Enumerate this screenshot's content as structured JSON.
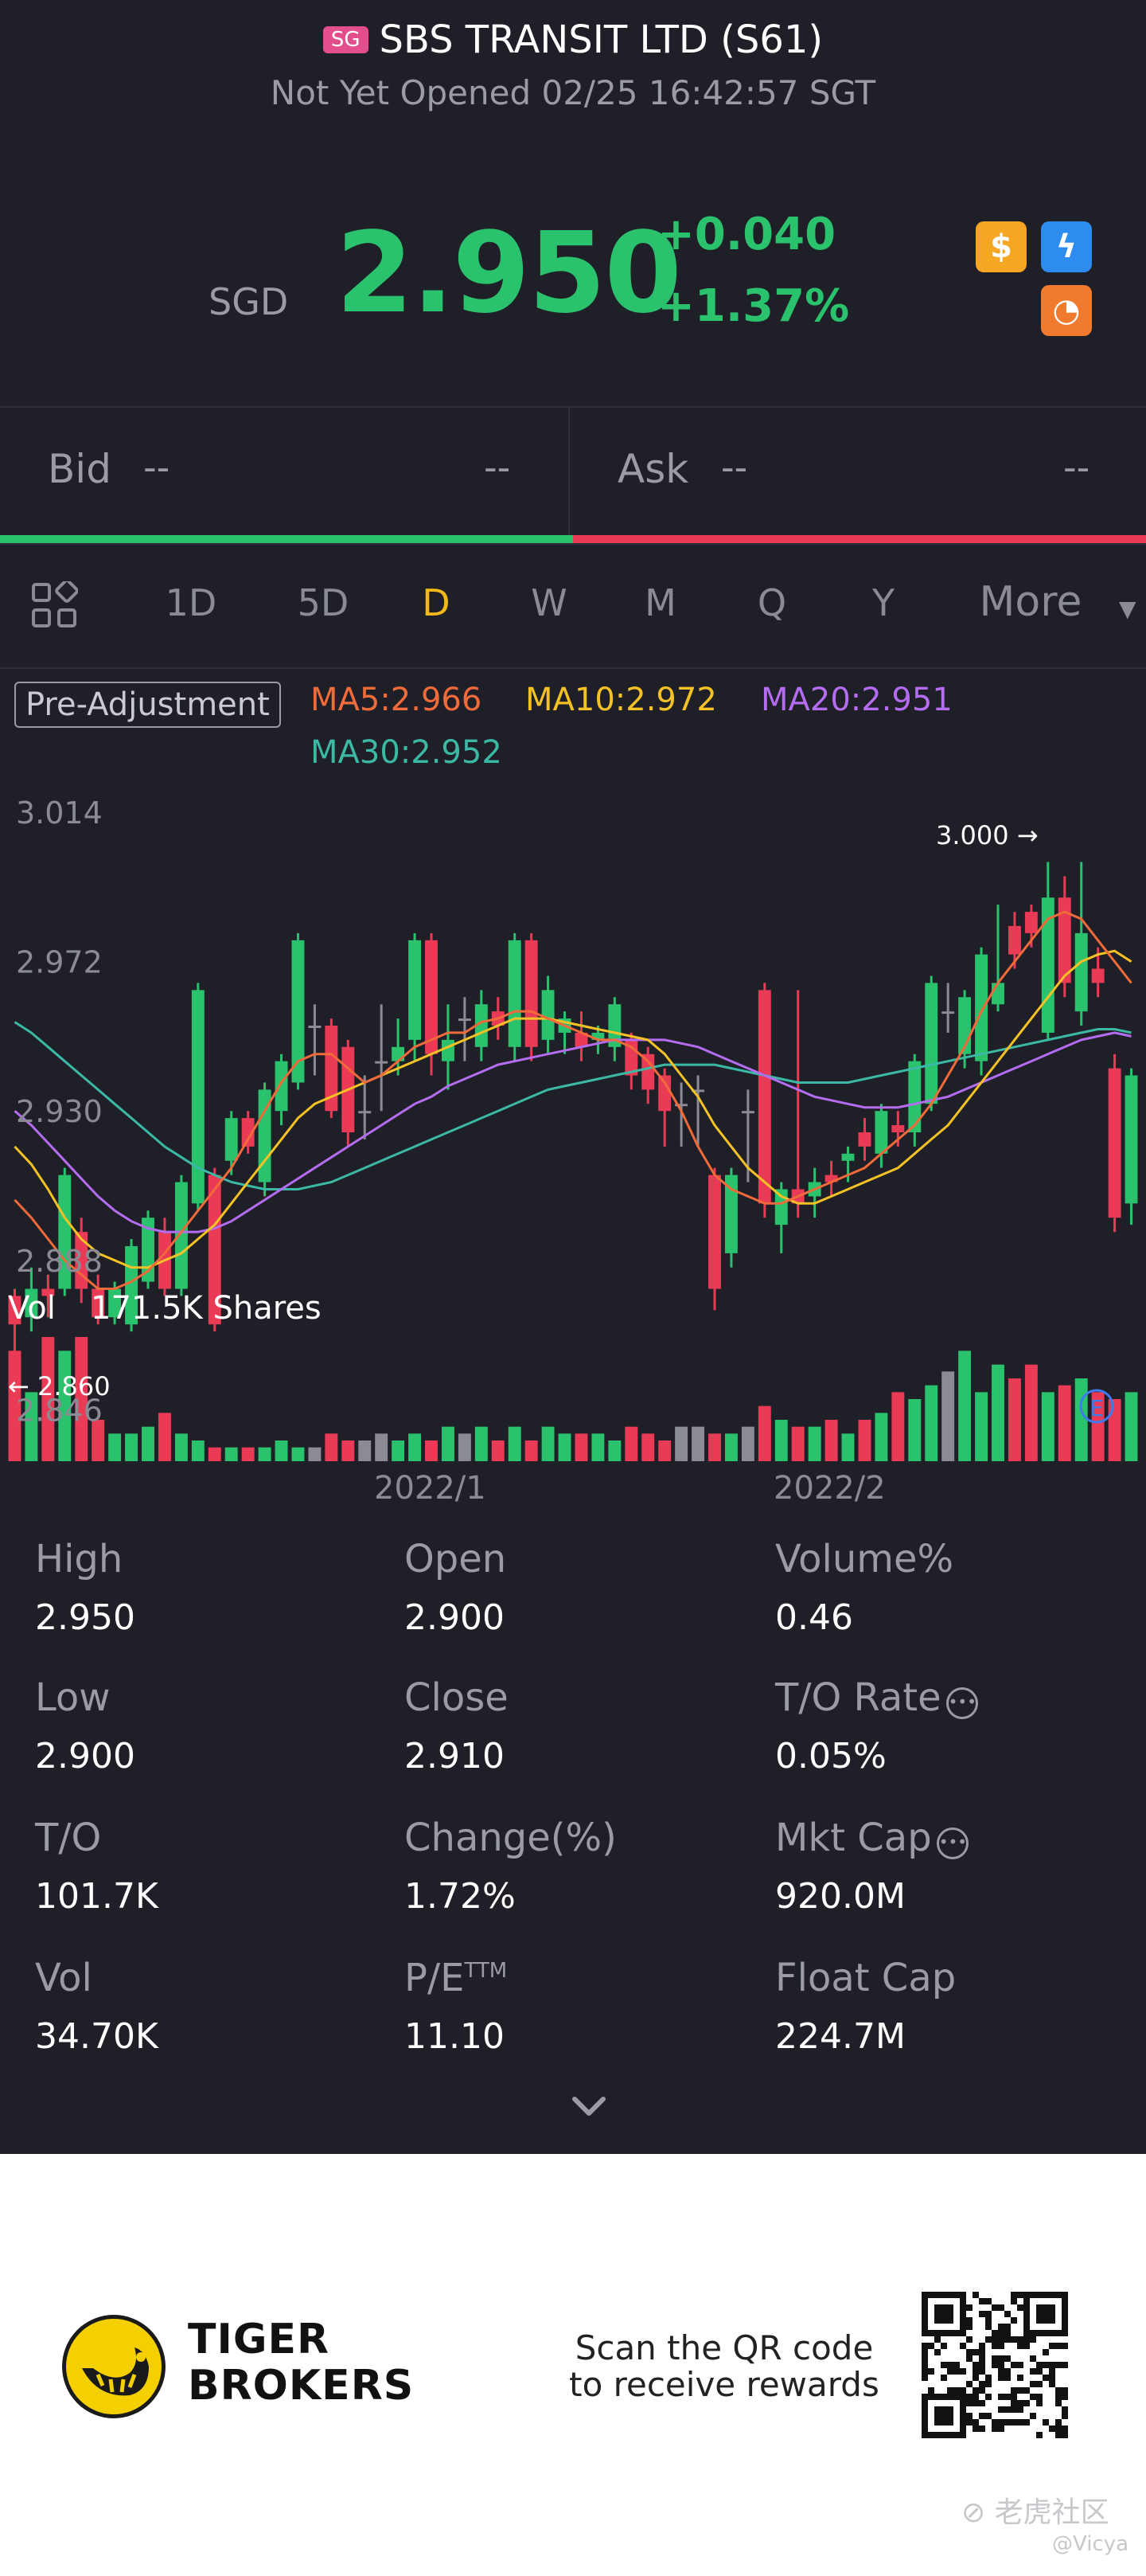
{
  "header": {
    "market_badge": "SG",
    "title": "SBS TRANSIT LTD (S61)",
    "status": "Not Yet Opened 02/25 16:42:57 SGT"
  },
  "quote": {
    "currency": "SGD",
    "price": "2.950",
    "change": "+0.040",
    "change_pct": "+1.37%"
  },
  "badges": [
    {
      "icon": "dollar-icon",
      "glyph": "$",
      "color": "#f5a623"
    },
    {
      "icon": "lightning-icon",
      "glyph": "ϟ",
      "color": "#2d8cf0"
    },
    {
      "icon": "chart-badge-icon",
      "glyph": "◔",
      "color": "#f07a2d"
    }
  ],
  "bid_ask": {
    "bid_label": "Bid",
    "bid_price": "--",
    "bid_size": "--",
    "ask_label": "Ask",
    "ask_price": "--",
    "ask_size": "--"
  },
  "tabs": {
    "grid_icon": "grid-icon",
    "items": [
      "1D",
      "5D",
      "D",
      "W",
      "M",
      "Q",
      "Y"
    ],
    "active": "D",
    "more": "More"
  },
  "indicators": {
    "adjust": "Pre-Adjustment",
    "ma5": "MA5:2.966",
    "ma10": "MA10:2.972",
    "ma20": "MA20:2.951",
    "ma30": "MA30:2.952",
    "colors": {
      "ma5": "#f06a3a",
      "ma10": "#f5c226",
      "ma20": "#b46cf0",
      "ma30": "#3bb9a5"
    }
  },
  "chart_data": {
    "type": "candlestick",
    "price_axis_labels": [
      "3.014",
      "2.972",
      "2.930",
      "2.888",
      "2.846"
    ],
    "ylim": [
      2.846,
      3.014
    ],
    "high_marker": "3.000",
    "low_marker": "2.860",
    "event_marker": "E",
    "volume_label": "Vol",
    "volume_value": "171.5K Shares",
    "x_labels": [
      "2022/1",
      "2022/2"
    ],
    "up_color": "#2bc26d",
    "down_color": "#e93a56",
    "candles": [
      {
        "o": 2.878,
        "c": 2.87,
        "h": 2.88,
        "l": 2.86
      },
      {
        "o": 2.872,
        "c": 2.88,
        "h": 2.886,
        "l": 2.868
      },
      {
        "o": 2.88,
        "c": 2.878,
        "h": 2.884,
        "l": 2.872
      },
      {
        "o": 2.88,
        "c": 2.912,
        "h": 2.914,
        "l": 2.878
      },
      {
        "o": 2.896,
        "c": 2.88,
        "h": 2.9,
        "l": 2.876
      },
      {
        "o": 2.88,
        "c": 2.872,
        "h": 2.884,
        "l": 2.87
      },
      {
        "o": 2.872,
        "c": 2.88,
        "h": 2.882,
        "l": 2.87
      },
      {
        "o": 2.87,
        "c": 2.892,
        "h": 2.894,
        "l": 2.868
      },
      {
        "o": 2.882,
        "c": 2.9,
        "h": 2.902,
        "l": 2.88
      },
      {
        "o": 2.896,
        "c": 2.88,
        "h": 2.9,
        "l": 2.878
      },
      {
        "o": 2.88,
        "c": 2.91,
        "h": 2.912,
        "l": 2.878
      },
      {
        "o": 2.904,
        "c": 2.964,
        "h": 2.966,
        "l": 2.902
      },
      {
        "o": 2.912,
        "c": 2.87,
        "h": 2.914,
        "l": 2.868
      },
      {
        "o": 2.916,
        "c": 2.928,
        "h": 2.93,
        "l": 2.912
      },
      {
        "o": 2.928,
        "c": 2.92,
        "h": 2.93,
        "l": 2.918
      },
      {
        "o": 2.91,
        "c": 2.936,
        "h": 2.938,
        "l": 2.906
      },
      {
        "o": 2.93,
        "c": 2.944,
        "h": 2.946,
        "l": 2.926
      },
      {
        "o": 2.938,
        "c": 2.978,
        "h": 2.98,
        "l": 2.936
      },
      {
        "o": 2.954,
        "c": 2.954,
        "h": 2.96,
        "l": 2.94
      },
      {
        "o": 2.954,
        "c": 2.93,
        "h": 2.956,
        "l": 2.928
      },
      {
        "o": 2.948,
        "c": 2.924,
        "h": 2.95,
        "l": 2.92
      },
      {
        "o": 2.93,
        "c": 2.93,
        "h": 2.94,
        "l": 2.922
      },
      {
        "o": 2.944,
        "c": 2.944,
        "h": 2.96,
        "l": 2.93
      },
      {
        "o": 2.944,
        "c": 2.948,
        "h": 2.956,
        "l": 2.94
      },
      {
        "o": 2.95,
        "c": 2.978,
        "h": 2.98,
        "l": 2.944
      },
      {
        "o": 2.978,
        "c": 2.946,
        "h": 2.98,
        "l": 2.94
      },
      {
        "o": 2.944,
        "c": 2.95,
        "h": 2.96,
        "l": 2.936
      },
      {
        "o": 2.956,
        "c": 2.956,
        "h": 2.962,
        "l": 2.944
      },
      {
        "o": 2.948,
        "c": 2.96,
        "h": 2.964,
        "l": 2.944
      },
      {
        "o": 2.958,
        "c": 2.954,
        "h": 2.962,
        "l": 2.95
      },
      {
        "o": 2.948,
        "c": 2.978,
        "h": 2.98,
        "l": 2.944
      },
      {
        "o": 2.978,
        "c": 2.948,
        "h": 2.98,
        "l": 2.944
      },
      {
        "o": 2.95,
        "c": 2.964,
        "h": 2.968,
        "l": 2.946
      },
      {
        "o": 2.952,
        "c": 2.956,
        "h": 2.958,
        "l": 2.946
      },
      {
        "o": 2.952,
        "c": 2.948,
        "h": 2.958,
        "l": 2.944
      },
      {
        "o": 2.95,
        "c": 2.952,
        "h": 2.954,
        "l": 2.946
      },
      {
        "o": 2.948,
        "c": 2.96,
        "h": 2.962,
        "l": 2.944
      },
      {
        "o": 2.95,
        "c": 2.94,
        "h": 2.952,
        "l": 2.936
      },
      {
        "o": 2.946,
        "c": 2.936,
        "h": 2.948,
        "l": 2.932
      },
      {
        "o": 2.94,
        "c": 2.93,
        "h": 2.942,
        "l": 2.92
      },
      {
        "o": 2.932,
        "c": 2.932,
        "h": 2.938,
        "l": 2.92
      },
      {
        "o": 2.936,
        "c": 2.936,
        "h": 2.94,
        "l": 2.92
      },
      {
        "o": 2.912,
        "c": 2.88,
        "h": 2.914,
        "l": 2.874
      },
      {
        "o": 2.89,
        "c": 2.912,
        "h": 2.914,
        "l": 2.886
      },
      {
        "o": 2.93,
        "c": 2.93,
        "h": 2.936,
        "l": 2.91
      },
      {
        "o": 2.964,
        "c": 2.904,
        "h": 2.966,
        "l": 2.9
      },
      {
        "o": 2.898,
        "c": 2.908,
        "h": 2.91,
        "l": 2.89
      },
      {
        "o": 2.908,
        "c": 2.904,
        "h": 2.964,
        "l": 2.9
      },
      {
        "o": 2.906,
        "c": 2.91,
        "h": 2.914,
        "l": 2.9
      },
      {
        "o": 2.912,
        "c": 2.91,
        "h": 2.916,
        "l": 2.906
      },
      {
        "o": 2.916,
        "c": 2.918,
        "h": 2.92,
        "l": 2.91
      },
      {
        "o": 2.924,
        "c": 2.92,
        "h": 2.928,
        "l": 2.916
      },
      {
        "o": 2.918,
        "c": 2.93,
        "h": 2.932,
        "l": 2.914
      },
      {
        "o": 2.926,
        "c": 2.924,
        "h": 2.93,
        "l": 2.92
      },
      {
        "o": 2.924,
        "c": 2.944,
        "h": 2.946,
        "l": 2.92
      },
      {
        "o": 2.932,
        "c": 2.966,
        "h": 2.968,
        "l": 2.93
      },
      {
        "o": 2.958,
        "c": 2.958,
        "h": 2.966,
        "l": 2.952
      },
      {
        "o": 2.946,
        "c": 2.962,
        "h": 2.964,
        "l": 2.942
      },
      {
        "o": 2.944,
        "c": 2.974,
        "h": 2.976,
        "l": 2.94
      },
      {
        "o": 2.96,
        "c": 2.966,
        "h": 2.988,
        "l": 2.958
      },
      {
        "o": 2.982,
        "c": 2.974,
        "h": 2.986,
        "l": 2.97
      },
      {
        "o": 2.986,
        "c": 2.98,
        "h": 2.988,
        "l": 2.976
      },
      {
        "o": 2.952,
        "c": 2.99,
        "h": 3.0,
        "l": 2.95
      },
      {
        "o": 2.99,
        "c": 2.966,
        "h": 2.996,
        "l": 2.962
      },
      {
        "o": 2.958,
        "c": 2.98,
        "h": 3.0,
        "l": 2.954
      },
      {
        "o": 2.97,
        "c": 2.966,
        "h": 2.976,
        "l": 2.962
      },
      {
        "o": 2.942,
        "c": 2.9,
        "h": 2.946,
        "l": 2.896
      },
      {
        "o": 2.904,
        "c": 2.94,
        "h": 2.942,
        "l": 2.898
      }
    ],
    "volumes": [
      16,
      10,
      18,
      16,
      18,
      6,
      4,
      4,
      5,
      7,
      4,
      3,
      2,
      2,
      2,
      2,
      3,
      2,
      2,
      4,
      3,
      3,
      4,
      3,
      4,
      3,
      5,
      4,
      5,
      3,
      5,
      3,
      5,
      4,
      4,
      4,
      3,
      5,
      4,
      3,
      5,
      5,
      4,
      4,
      5,
      8,
      6,
      5,
      5,
      6,
      4,
      6,
      7,
      10,
      9,
      11,
      13,
      16,
      10,
      14,
      12,
      14,
      10,
      11,
      12,
      10,
      9,
      10
    ],
    "ma5": [
      2.905,
      2.9,
      2.894,
      2.888,
      2.884,
      2.88,
      2.88,
      2.882,
      2.885,
      2.89,
      2.896,
      2.902,
      2.908,
      2.914,
      2.922,
      2.93,
      2.938,
      2.944,
      2.946,
      2.946,
      2.942,
      2.938,
      2.94,
      2.944,
      2.948,
      2.95,
      2.952,
      2.952,
      2.955,
      2.956,
      2.958,
      2.958,
      2.956,
      2.954,
      2.952,
      2.95,
      2.95,
      2.948,
      2.944,
      2.938,
      2.93,
      2.92,
      2.912,
      2.908,
      2.906,
      2.904,
      2.904,
      2.906,
      2.908,
      2.91,
      2.912,
      2.914,
      2.918,
      2.922,
      2.926,
      2.932,
      2.94,
      2.948,
      2.958,
      2.966,
      2.972,
      2.978,
      2.984,
      2.986,
      2.984,
      2.978,
      2.972,
      2.966
    ],
    "ma10": [
      2.92,
      2.915,
      2.908,
      2.9,
      2.894,
      2.89,
      2.888,
      2.886,
      2.886,
      2.888,
      2.89,
      2.894,
      2.898,
      2.904,
      2.91,
      2.916,
      2.922,
      2.928,
      2.932,
      2.934,
      2.936,
      2.938,
      2.94,
      2.942,
      2.944,
      2.946,
      2.948,
      2.95,
      2.952,
      2.954,
      2.956,
      2.956,
      2.956,
      2.955,
      2.954,
      2.953,
      2.952,
      2.951,
      2.95,
      2.946,
      2.94,
      2.934,
      2.926,
      2.92,
      2.914,
      2.91,
      2.906,
      2.904,
      2.904,
      2.906,
      2.908,
      2.91,
      2.912,
      2.914,
      2.918,
      2.922,
      2.926,
      2.932,
      2.938,
      2.944,
      2.95,
      2.956,
      2.962,
      2.968,
      2.972,
      2.974,
      2.975,
      2.972
    ],
    "ma20": [
      2.93,
      2.926,
      2.921,
      2.916,
      2.911,
      2.906,
      2.902,
      2.899,
      2.897,
      2.896,
      2.896,
      2.896,
      2.897,
      2.899,
      2.902,
      2.905,
      2.908,
      2.911,
      2.914,
      2.917,
      2.92,
      2.923,
      2.926,
      2.929,
      2.932,
      2.934,
      2.937,
      2.939,
      2.941,
      2.943,
      2.944,
      2.945,
      2.946,
      2.947,
      2.948,
      2.949,
      2.95,
      2.95,
      2.95,
      2.95,
      2.949,
      2.948,
      2.946,
      2.944,
      2.942,
      2.94,
      2.938,
      2.936,
      2.934,
      2.933,
      2.932,
      2.931,
      2.931,
      2.931,
      2.932,
      2.933,
      2.934,
      2.936,
      2.938,
      2.94,
      2.942,
      2.944,
      2.946,
      2.948,
      2.95,
      2.951,
      2.952,
      2.951
    ],
    "ma30": [
      2.955,
      2.952,
      2.948,
      2.944,
      2.94,
      2.936,
      2.932,
      2.928,
      2.924,
      2.92,
      2.917,
      2.914,
      2.912,
      2.91,
      2.909,
      2.908,
      2.908,
      2.908,
      2.909,
      2.91,
      2.912,
      2.914,
      2.916,
      2.918,
      2.92,
      2.922,
      2.924,
      2.926,
      2.928,
      2.93,
      2.932,
      2.934,
      2.936,
      2.937,
      2.938,
      2.939,
      2.94,
      2.941,
      2.942,
      2.943,
      2.943,
      2.943,
      2.943,
      2.942,
      2.941,
      2.94,
      2.939,
      2.938,
      2.938,
      2.938,
      2.938,
      2.939,
      2.94,
      2.941,
      2.942,
      2.943,
      2.944,
      2.945,
      2.946,
      2.947,
      2.948,
      2.949,
      2.95,
      2.951,
      2.952,
      2.953,
      2.953,
      2.952
    ]
  },
  "stats": [
    {
      "label": "High",
      "value": "2.950",
      "info": false
    },
    {
      "label": "Open",
      "value": "2.900",
      "info": false
    },
    {
      "label": "Volume%",
      "value": "0.46",
      "info": false
    },
    {
      "label": "Low",
      "value": "2.900",
      "info": false
    },
    {
      "label": "Close",
      "value": "2.910",
      "info": false
    },
    {
      "label": "T/O Rate",
      "value": "0.05%",
      "info": true
    },
    {
      "label": "T/O",
      "value": "101.7K",
      "info": false
    },
    {
      "label": "Change(%)",
      "value": "1.72%",
      "info": false
    },
    {
      "label": "Mkt Cap",
      "value": "920.0M",
      "info": true
    },
    {
      "label": "Vol",
      "value": "34.70K",
      "info": false
    },
    {
      "label": "P/E",
      "sup": "TTM",
      "value": "11.10",
      "info": false
    },
    {
      "label": "Float Cap",
      "value": "224.7M",
      "info": false
    }
  ],
  "expand_icon": "chevron-down-icon",
  "footer": {
    "brand_line1": "TIGER",
    "brand_line2": "BROKERS",
    "scan_line1": "Scan the QR code",
    "scan_line2": "to receive rewards",
    "watermark": "老虎社区",
    "watermark_user": "@Vicya"
  }
}
